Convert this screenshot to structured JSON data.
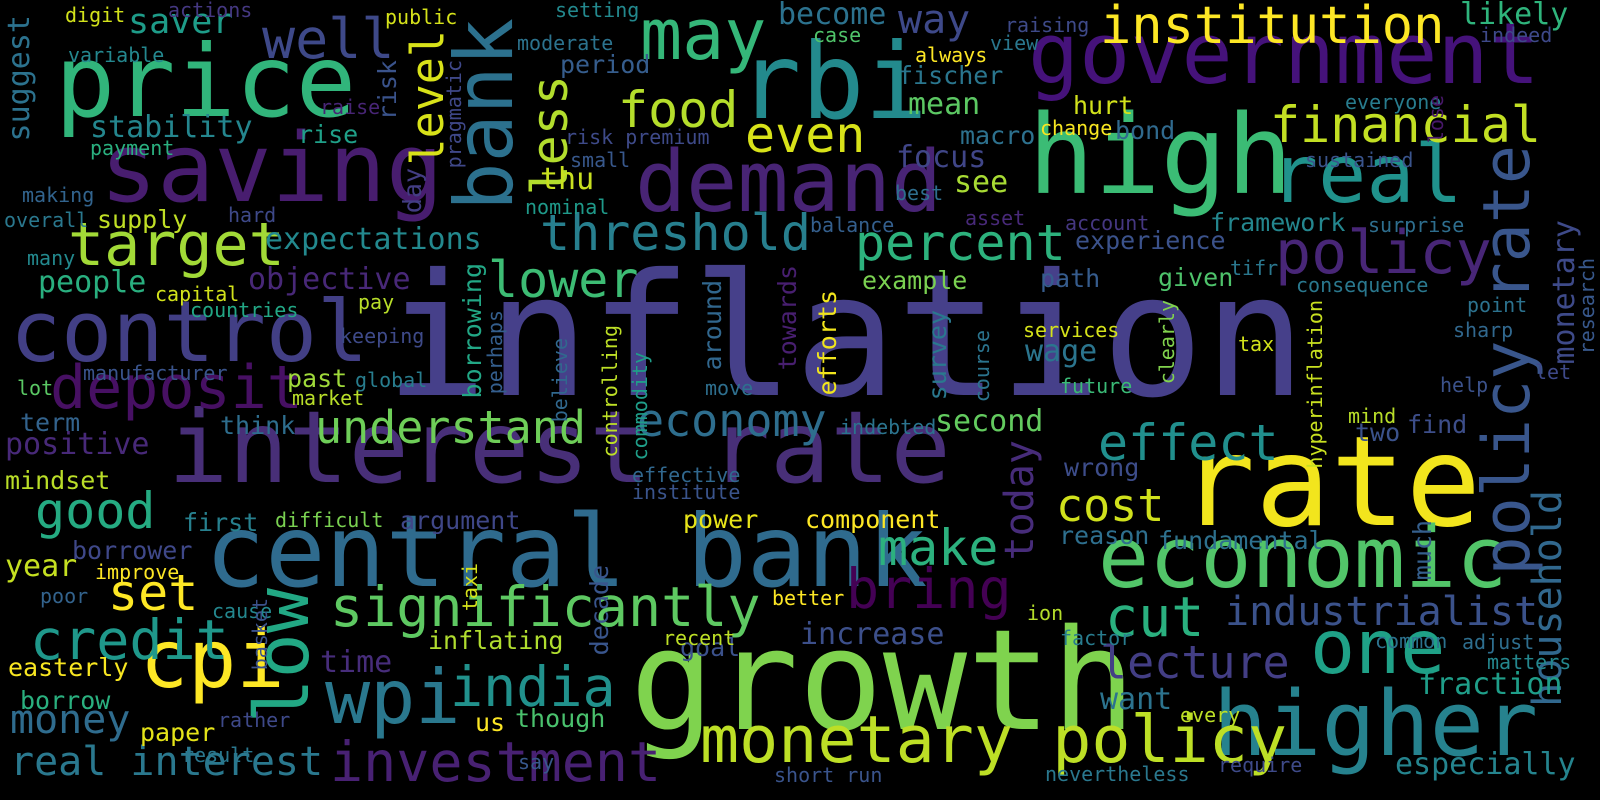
{
  "words": [
    {
      "text": "inflation",
      "color": "#46408a"
    },
    {
      "text": "interest rate",
      "color": "#482f78"
    },
    {
      "text": "growth",
      "color": "#7fd34e"
    },
    {
      "text": "rate",
      "color": "#f2e51d"
    },
    {
      "text": "central bank",
      "color": "#2f6b8e"
    },
    {
      "text": "government",
      "color": "#45127a"
    },
    {
      "text": "high",
      "color": "#3bbc75"
    },
    {
      "text": "rbi",
      "color": "#238a8d"
    },
    {
      "text": "price",
      "color": "#31b57b"
    },
    {
      "text": "saving",
      "color": "#481d6f"
    },
    {
      "text": "bank",
      "color": "#2c718e"
    },
    {
      "text": "control",
      "color": "#423f85"
    },
    {
      "text": "higher",
      "color": "#26828e"
    },
    {
      "text": "economic",
      "color": "#52c569"
    },
    {
      "text": "demand",
      "color": "#482475"
    },
    {
      "text": "monetary policy",
      "color": "#bddf26"
    },
    {
      "text": "low",
      "color": "#22a884"
    },
    {
      "text": "policy rate",
      "color": "#39568c"
    },
    {
      "text": "one",
      "color": "#1fa187"
    },
    {
      "text": "may",
      "color": "#35b779"
    },
    {
      "text": "institution",
      "color": "#fde725"
    },
    {
      "text": "significantly",
      "color": "#5ec962"
    },
    {
      "text": "deposit",
      "color": "#471063"
    },
    {
      "text": "cpi",
      "color": "#fde725"
    },
    {
      "text": "wpi",
      "color": "#2a788e"
    },
    {
      "text": "real",
      "color": "#20928c"
    },
    {
      "text": "target",
      "color": "#a2da37"
    },
    {
      "text": "investment",
      "color": "#482173"
    },
    {
      "text": "bring",
      "color": "#440154"
    },
    {
      "text": "india",
      "color": "#21918c"
    },
    {
      "text": "threshold",
      "color": "#277f8e"
    },
    {
      "text": "percent",
      "color": "#2db27d"
    },
    {
      "text": "policy",
      "color": "#482677"
    },
    {
      "text": "financial",
      "color": "#c2df23"
    },
    {
      "text": "understand",
      "color": "#6ece58"
    },
    {
      "text": "economy",
      "color": "#2e6e8e"
    },
    {
      "text": "credit",
      "color": "#1f988b"
    },
    {
      "text": "real interest",
      "color": "#2a788e"
    },
    {
      "text": "food",
      "color": "#b5de2b"
    },
    {
      "text": "even",
      "color": "#d8e219"
    },
    {
      "text": "well",
      "color": "#3e4989"
    },
    {
      "text": "lower",
      "color": "#3dbc74"
    },
    {
      "text": "good",
      "color": "#25ab82"
    },
    {
      "text": "make",
      "color": "#2cb17e"
    },
    {
      "text": "effect",
      "color": "#218f8d"
    },
    {
      "text": "cut",
      "color": "#2ab07f"
    },
    {
      "text": "today",
      "color": "#472c7a"
    },
    {
      "text": "lecture",
      "color": "#433e85"
    },
    {
      "text": "industrialist",
      "color": "#3b528b"
    },
    {
      "text": "money",
      "color": "#2f6c8e"
    },
    {
      "text": "set",
      "color": "#fde725"
    },
    {
      "text": "cost",
      "color": "#d0e11c"
    },
    {
      "text": "household",
      "color": "#31688e"
    },
    {
      "text": "less",
      "color": "#b2dd2d"
    },
    {
      "text": "level",
      "color": "#d8e219"
    },
    {
      "text": "way",
      "color": "#3e4989"
    },
    {
      "text": "saver",
      "color": "#1e9c89"
    },
    {
      "text": "become",
      "color": "#2c728e"
    },
    {
      "text": "suggest",
      "color": "#2c728e"
    },
    {
      "text": "monetary",
      "color": "#3e4a89"
    },
    {
      "text": "likely",
      "color": "#2fb47c"
    },
    {
      "text": "positive",
      "color": "#482979"
    },
    {
      "text": "fraction",
      "color": "#1f9e89"
    },
    {
      "text": "especially",
      "color": "#25848e"
    },
    {
      "text": "expectations",
      "color": "#23898e"
    },
    {
      "text": "objective",
      "color": "#482878"
    },
    {
      "text": "stability",
      "color": "#24868e"
    },
    {
      "text": "want",
      "color": "#2c738e"
    },
    {
      "text": "second",
      "color": "#63cb5f"
    },
    {
      "text": "wage",
      "color": "#2b758e"
    },
    {
      "text": "mean",
      "color": "#5cc863"
    },
    {
      "text": "see",
      "color": "#a8db34"
    },
    {
      "text": "focus",
      "color": "#404688"
    },
    {
      "text": "fischer",
      "color": "#2a768e"
    },
    {
      "text": "experience",
      "color": "#3b528b"
    },
    {
      "text": "framework",
      "color": "#24868e"
    },
    {
      "text": "thu",
      "color": "#c8e020"
    },
    {
      "text": "period",
      "color": "#365d8d"
    },
    {
      "text": "people",
      "color": "#29af7f"
    },
    {
      "text": "path",
      "color": "#365c8d"
    },
    {
      "text": "given",
      "color": "#4ec36b"
    },
    {
      "text": "example",
      "color": "#7ad151"
    },
    {
      "text": "efforts",
      "color": "#f1e51d"
    },
    {
      "text": "towards",
      "color": "#481f70"
    },
    {
      "text": "around",
      "color": "#31678e"
    },
    {
      "text": "survey",
      "color": "#2a788e"
    },
    {
      "text": "increase",
      "color": "#3c4f8a"
    },
    {
      "text": "time",
      "color": "#472d7b"
    },
    {
      "text": "goal",
      "color": "#3b518b"
    },
    {
      "text": "argument",
      "color": "#3f4788"
    },
    {
      "text": "component",
      "color": "#fde725"
    },
    {
      "text": "power",
      "color": "#e7e419"
    },
    {
      "text": "borrower",
      "color": "#3f4889"
    },
    {
      "text": "first",
      "color": "#27808e"
    },
    {
      "text": "mindset",
      "color": "#bade28"
    },
    {
      "text": "year",
      "color": "#c5e021"
    },
    {
      "text": "easterly",
      "color": "#f8e621"
    },
    {
      "text": "borrow",
      "color": "#2ab07f"
    },
    {
      "text": "paper",
      "color": "#e5e419"
    },
    {
      "text": "us",
      "color": "#fde725"
    },
    {
      "text": "though",
      "color": "#4ac16d"
    },
    {
      "text": "inflating",
      "color": "#b0dd2f"
    },
    {
      "text": "decade",
      "color": "#39558c"
    },
    {
      "text": "much",
      "color": "#355f8d"
    },
    {
      "text": "reason",
      "color": "#2e6f8e"
    },
    {
      "text": "fundamental",
      "color": "#2d708e"
    },
    {
      "text": "two",
      "color": "#3b528b"
    },
    {
      "text": "find",
      "color": "#3d4e8a"
    },
    {
      "text": "wrong",
      "color": "#3d4d8a"
    },
    {
      "text": "term",
      "color": "#33638d"
    },
    {
      "text": "think",
      "color": "#2e6e8e"
    },
    {
      "text": "past",
      "color": "#9fda3a"
    },
    {
      "text": "supply",
      "color": "#c0df25"
    },
    {
      "text": "rise",
      "color": "#1fa088"
    },
    {
      "text": "risk",
      "color": "#3a538b"
    },
    {
      "text": "hurt",
      "color": "#d2e21b"
    },
    {
      "text": "macro",
      "color": "#2d718e"
    },
    {
      "text": "bond",
      "color": "#306a8e"
    },
    {
      "text": "asset",
      "color": "#482979"
    },
    {
      "text": "day",
      "color": "#433d84"
    },
    {
      "text": "pragmatic",
      "color": "#3f4889"
    },
    {
      "text": "borrowing",
      "color": "#22a785"
    },
    {
      "text": "risk premium",
      "color": "#3e4a89"
    },
    {
      "text": "nominal",
      "color": "#1f9a8a"
    },
    {
      "text": "small",
      "color": "#38588c"
    },
    {
      "text": "balance",
      "color": "#345f8d"
    },
    {
      "text": "account",
      "color": "#453781"
    },
    {
      "text": "surprise",
      "color": "#2e6e8e"
    },
    {
      "text": "sustained",
      "color": "#3a548c"
    },
    {
      "text": "everyone",
      "color": "#287c8e"
    },
    {
      "text": "change",
      "color": "#f8e621"
    },
    {
      "text": "lose",
      "color": "#48186a"
    },
    {
      "text": "best",
      "color": "#2e6e8e"
    },
    {
      "text": "raising",
      "color": "#3e4a89"
    },
    {
      "text": "view",
      "color": "#2a778e"
    },
    {
      "text": "always",
      "color": "#fde725"
    },
    {
      "text": "case",
      "color": "#50c46a"
    },
    {
      "text": "indeed",
      "color": "#3e4989"
    },
    {
      "text": "setting",
      "color": "#23898e"
    },
    {
      "text": "moderate",
      "color": "#2c738e"
    },
    {
      "text": "public",
      "color": "#d5e21a"
    },
    {
      "text": "actions",
      "color": "#453882"
    },
    {
      "text": "digit",
      "color": "#d2e21b"
    },
    {
      "text": "variable",
      "color": "#24878e"
    },
    {
      "text": "payment",
      "color": "#2ab07f"
    },
    {
      "text": "raise",
      "color": "#482576"
    },
    {
      "text": "making",
      "color": "#32648e"
    },
    {
      "text": "overall",
      "color": "#2a788e"
    },
    {
      "text": "hard",
      "color": "#3e4989"
    },
    {
      "text": "many",
      "color": "#23898e"
    },
    {
      "text": "capital",
      "color": "#d2e21b"
    },
    {
      "text": "countries",
      "color": "#22a785"
    },
    {
      "text": "pay",
      "color": "#b8de29"
    },
    {
      "text": "keeping",
      "color": "#3e4a89"
    },
    {
      "text": "manufacturer",
      "color": "#3a548c"
    },
    {
      "text": "global",
      "color": "#287d8e"
    },
    {
      "text": "lot",
      "color": "#5ac864"
    },
    {
      "text": "market",
      "color": "#b8de29"
    },
    {
      "text": "perhaps",
      "color": "#345e8d"
    },
    {
      "text": "believe",
      "color": "#31688e"
    },
    {
      "text": "controlling",
      "color": "#bddf26"
    },
    {
      "text": "commodity",
      "color": "#1f9e89"
    },
    {
      "text": "move",
      "color": "#2e6f8e"
    },
    {
      "text": "course",
      "color": "#2b748e"
    },
    {
      "text": "services",
      "color": "#d5e21a"
    },
    {
      "text": "future",
      "color": "#3aba76"
    },
    {
      "text": "clearly",
      "color": "#81d34d"
    },
    {
      "text": "tax",
      "color": "#d2e21b"
    },
    {
      "text": "hyperinflation",
      "color": "#c8e020"
    },
    {
      "text": "indebted",
      "color": "#2b748e"
    },
    {
      "text": "effective",
      "color": "#31688e"
    },
    {
      "text": "institute",
      "color": "#3a548c"
    },
    {
      "text": "difficult",
      "color": "#7ad151"
    },
    {
      "text": "improve",
      "color": "#fde725"
    },
    {
      "text": "poor",
      "color": "#33638d"
    },
    {
      "text": "cause",
      "color": "#24878e"
    },
    {
      "text": "basket",
      "color": "#3b528b"
    },
    {
      "text": "taxi",
      "color": "#d5e21a"
    },
    {
      "text": "better",
      "color": "#fde725"
    },
    {
      "text": "recent",
      "color": "#bddf26"
    },
    {
      "text": "ion",
      "color": "#b5de2b"
    },
    {
      "text": "factor",
      "color": "#287c8e"
    },
    {
      "text": "common",
      "color": "#2c728e"
    },
    {
      "text": "adjust",
      "color": "#2e6e8e"
    },
    {
      "text": "matters",
      "color": "#24878e"
    },
    {
      "text": "rather",
      "color": "#3e4989"
    },
    {
      "text": "result",
      "color": "#2a778e"
    },
    {
      "text": "say",
      "color": "#38588c"
    },
    {
      "text": "short run",
      "color": "#3a548c"
    },
    {
      "text": "nevertheless",
      "color": "#2a788e"
    },
    {
      "text": "require",
      "color": "#3e4a89"
    },
    {
      "text": "every",
      "color": "#bddf26"
    },
    {
      "text": "mind",
      "color": "#b8de29"
    },
    {
      "text": "help",
      "color": "#3b528b"
    },
    {
      "text": "point",
      "color": "#2c728e"
    },
    {
      "text": "sharp",
      "color": "#31688e"
    },
    {
      "text": "let",
      "color": "#3e4989"
    },
    {
      "text": "consequence",
      "color": "#2a788e"
    },
    {
      "text": "tifr",
      "color": "#2a778e"
    },
    {
      "text": "research",
      "color": "#38588c"
    }
  ]
}
